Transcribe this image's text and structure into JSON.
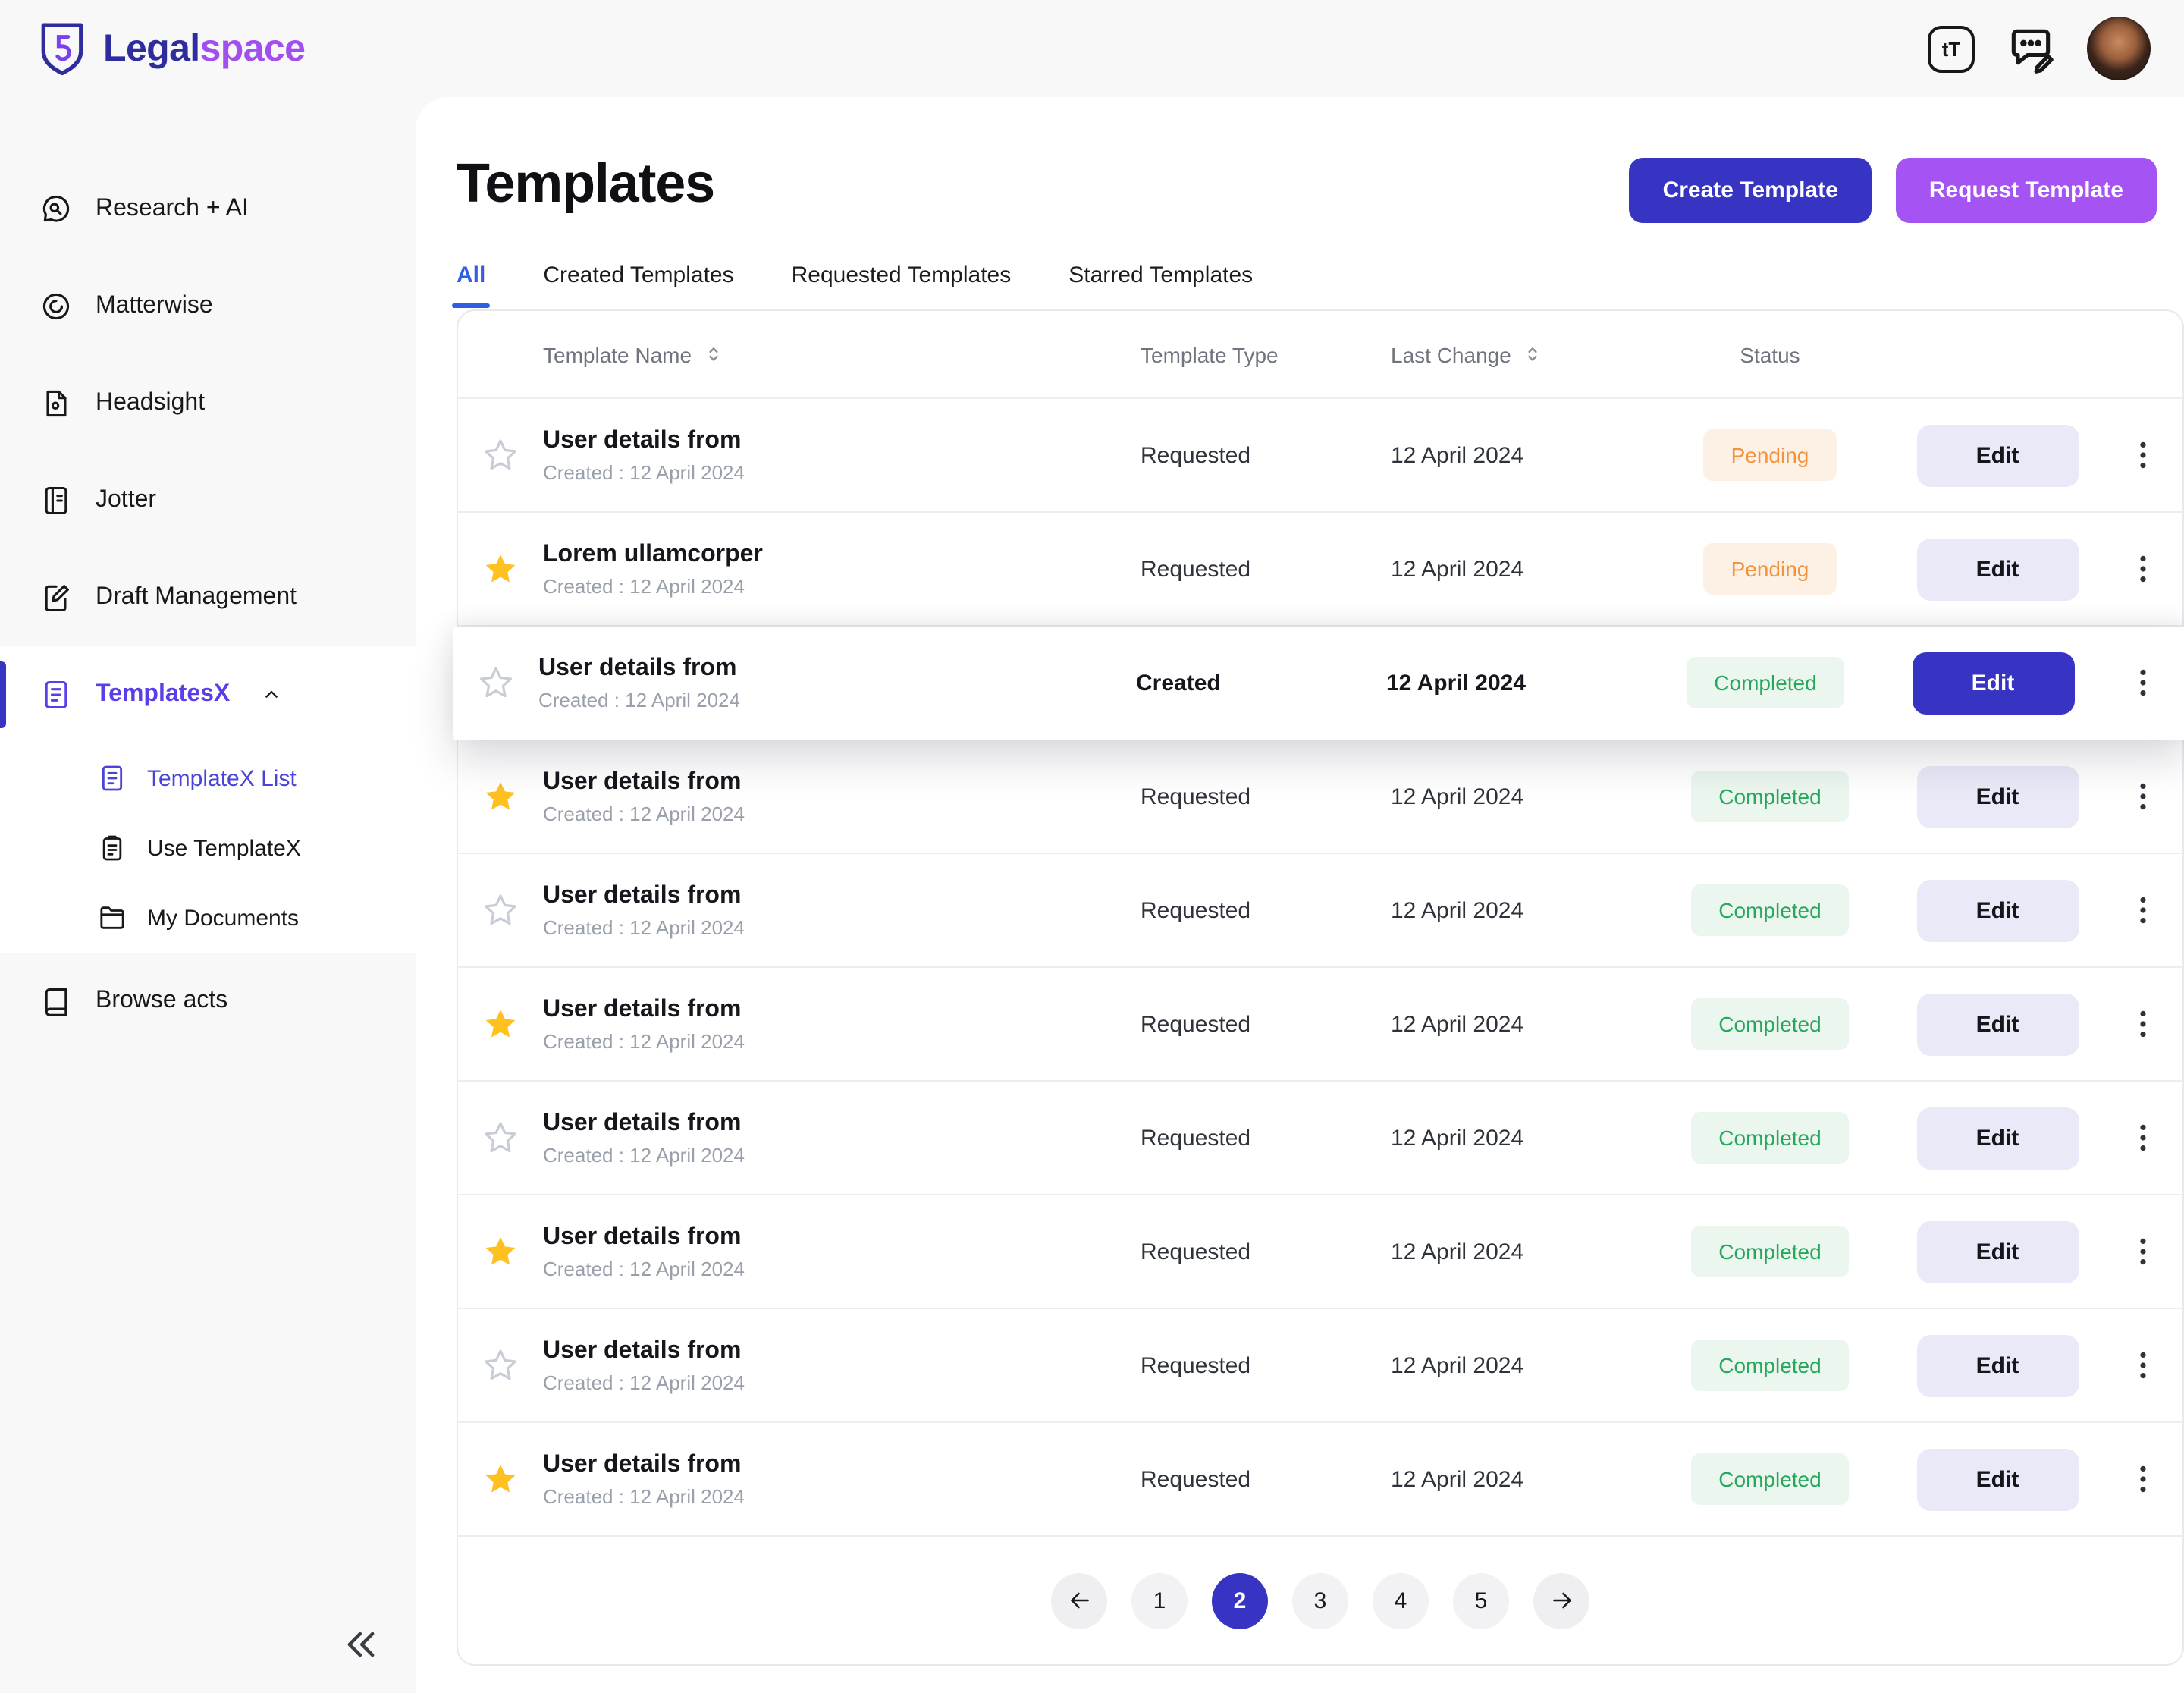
{
  "brand": {
    "logo_text_primary": "Legal",
    "logo_text_secondary": "space"
  },
  "topbar": {
    "text_size_label": "tT"
  },
  "sidebar": {
    "items": [
      {
        "label": "Research + AI",
        "icon": "chat-ai-icon"
      },
      {
        "label": "Matterwise",
        "icon": "matter-icon"
      },
      {
        "label": "Headsight",
        "icon": "headsight-icon"
      },
      {
        "label": "Jotter",
        "icon": "jotter-icon"
      },
      {
        "label": "Draft Management",
        "icon": "draft-icon"
      }
    ],
    "group": {
      "label": "TemplatesX",
      "icon": "template-icon",
      "expanded": true,
      "children": [
        {
          "label": "TemplateX List",
          "icon": "template-list-icon",
          "active": true
        },
        {
          "label": "Use TemplateX",
          "icon": "use-template-icon",
          "active": false
        },
        {
          "label": "My Documents",
          "icon": "documents-icon",
          "active": false
        }
      ]
    },
    "items_bottom": [
      {
        "label": "Browse acts",
        "icon": "browse-acts-icon"
      }
    ]
  },
  "main": {
    "title": "Templates",
    "buttons": {
      "create": "Create Template",
      "request": "Request Template"
    },
    "tabs": [
      {
        "label": "All",
        "active": true
      },
      {
        "label": "Created Templates",
        "active": false
      },
      {
        "label": "Requested Templates",
        "active": false
      },
      {
        "label": "Starred Templates",
        "active": false
      }
    ],
    "table": {
      "headers": {
        "name": "Template Name",
        "type": "Template Type",
        "last_change": "Last Change",
        "status": "Status"
      },
      "edit_label": "Edit",
      "rows": [
        {
          "starred": false,
          "name": "User details from",
          "created": "Created : 12 April 2024",
          "type": "Requested",
          "last_change": "12 April 2024",
          "status": "Pending",
          "highlighted": false
        },
        {
          "starred": true,
          "name": "Lorem ullamcorper",
          "created": "Created : 12 April 2024",
          "type": "Requested",
          "last_change": "12 April 2024",
          "status": "Pending",
          "highlighted": false
        },
        {
          "starred": false,
          "name": "User details from",
          "created": "Created : 12 April 2024",
          "type": "Created",
          "last_change": "12 April 2024",
          "status": "Completed",
          "highlighted": true
        },
        {
          "starred": true,
          "name": "User details from",
          "created": "Created : 12 April 2024",
          "type": "Requested",
          "last_change": "12 April 2024",
          "status": "Completed",
          "highlighted": false
        },
        {
          "starred": false,
          "name": "User details from",
          "created": "Created : 12 April 2024",
          "type": "Requested",
          "last_change": "12 April 2024",
          "status": "Completed",
          "highlighted": false
        },
        {
          "starred": true,
          "name": "User details from",
          "created": "Created : 12 April 2024",
          "type": "Requested",
          "last_change": "12 April 2024",
          "status": "Completed",
          "highlighted": false
        },
        {
          "starred": false,
          "name": "User details from",
          "created": "Created : 12 April 2024",
          "type": "Requested",
          "last_change": "12 April 2024",
          "status": "Completed",
          "highlighted": false
        },
        {
          "starred": true,
          "name": "User details from",
          "created": "Created : 12 April 2024",
          "type": "Requested",
          "last_change": "12 April 2024",
          "status": "Completed",
          "highlighted": false
        },
        {
          "starred": false,
          "name": "User details from",
          "created": "Created : 12 April 2024",
          "type": "Requested",
          "last_change": "12 April 2024",
          "status": "Completed",
          "highlighted": false
        },
        {
          "starred": true,
          "name": "User details from",
          "created": "Created : 12 April 2024",
          "type": "Requested",
          "last_change": "12 April 2024",
          "status": "Completed",
          "highlighted": false
        }
      ]
    },
    "pagination": {
      "pages": [
        "1",
        "2",
        "3",
        "4",
        "5"
      ],
      "active_page": "2"
    }
  },
  "colors": {
    "accent-indigo": "#3734c4",
    "accent-purple": "#a653f4",
    "tab-active-blue": "#2f5fe0",
    "pending-text": "#f2943d",
    "pending-bg": "#fdf1e5",
    "completed-text": "#27a75c",
    "completed-bg": "#eaf6ee",
    "star-filled": "#ffc120"
  }
}
